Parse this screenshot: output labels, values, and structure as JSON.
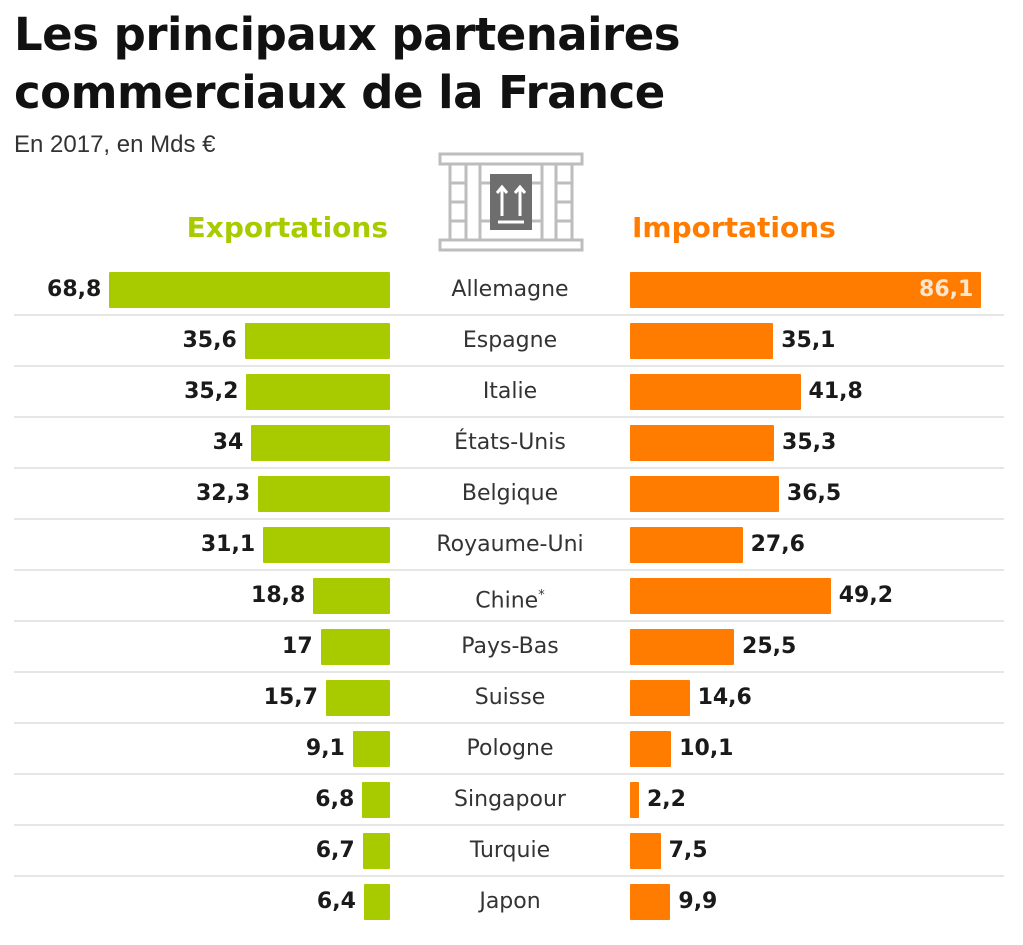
{
  "header": {
    "title_line1": "Les principaux partenaires",
    "title_line2": "commerciaux de la France",
    "subtitle": "En 2017, en Mds €",
    "icon": "shipping-crate-icon"
  },
  "colors": {
    "exports": "#a8cb00",
    "imports": "#ff7c00",
    "separator": "#e6e6e6",
    "text": "#1a1a1a"
  },
  "chart_data": {
    "type": "bar",
    "orientation": "horizontal-butterfly",
    "title": "Les principaux partenaires commerciaux de la France",
    "subtitle": "En 2017, en Mds €",
    "unit": "Mds €",
    "categories": [
      "Allemagne",
      "Espagne",
      "Italie",
      "États-Unis",
      "Belgique",
      "Royaume-Uni",
      "Chine*",
      "Pays-Bas",
      "Suisse",
      "Pologne",
      "Singapour",
      "Turquie",
      "Japon"
    ],
    "series": [
      {
        "name": "Exportations",
        "color": "#a8cb00",
        "side": "left",
        "values": [
          68.8,
          35.6,
          35.2,
          34,
          32.3,
          31.1,
          18.8,
          17,
          15.7,
          9.1,
          6.8,
          6.7,
          6.4
        ],
        "labels": [
          "68,8",
          "35,6",
          "35,2",
          "34",
          "32,3",
          "31,1",
          "18,8",
          "17",
          "15,7",
          "9,1",
          "6,8",
          "6,7",
          "6,4"
        ]
      },
      {
        "name": "Importations",
        "color": "#ff7c00",
        "side": "right",
        "values": [
          86.1,
          35.1,
          41.8,
          35.3,
          36.5,
          27.6,
          49.2,
          25.5,
          14.6,
          10.1,
          2.2,
          7.5,
          9.9
        ],
        "labels": [
          "86,1",
          "35,1",
          "41,8",
          "35,3",
          "36,5",
          "27,6",
          "49,2",
          "25,5",
          "14,6",
          "10,1",
          "2,2",
          "7,5",
          "9,9"
        ]
      }
    ],
    "xlabel": "",
    "ylabel": "",
    "grid": false,
    "legend": "top"
  }
}
